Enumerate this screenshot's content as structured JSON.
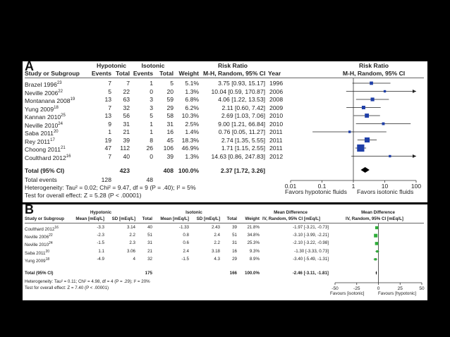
{
  "panel_a": {
    "letter": "A",
    "group_headers": {
      "left": "Hypotonic",
      "right": "Isotonic",
      "effect": "Risk Ratio",
      "plot": "Risk Ratio"
    },
    "columns": {
      "study": "Study or Subgroup",
      "events1": "Events",
      "total1": "Total",
      "events2": "Events",
      "total2": "Total",
      "weight": "Weight",
      "method": "M-H, Random, 95% CI",
      "year": "Year",
      "plot_method": "M-H, Random, 95% CI"
    },
    "rows": [
      {
        "study": "Brazel 1996",
        "ref": "23",
        "e1": "7",
        "t1": "7",
        "e2": "1",
        "t2": "5",
        "w": "5.1%",
        "ci": "3.75 [0.93, 15.17]",
        "year": "1996"
      },
      {
        "study": "Neville 2006",
        "ref": "22",
        "e1": "5",
        "t1": "22",
        "e2": "0",
        "t2": "20",
        "w": "1.3%",
        "ci": "10.04 [0.59, 170.87]",
        "year": "2006"
      },
      {
        "study": "Montanana 2008",
        "ref": "19",
        "e1": "13",
        "t1": "63",
        "e2": "3",
        "t2": "59",
        "w": "6.8%",
        "ci": "4.06 [1.22, 13.53]",
        "year": "2008"
      },
      {
        "study": "Yung 2009",
        "ref": "18",
        "e1": "7",
        "t1": "32",
        "e2": "3",
        "t2": "29",
        "w": "6.2%",
        "ci": "2.11 [0.60, 7.42]",
        "year": "2009"
      },
      {
        "study": "Kannan 2010",
        "ref": "25",
        "e1": "13",
        "t1": "56",
        "e2": "5",
        "t2": "58",
        "w": "10.3%",
        "ci": "2.69 [1.03, 7.06]",
        "year": "2010"
      },
      {
        "study": "Neville 2010",
        "ref": "24",
        "e1": "9",
        "t1": "31",
        "e2": "1",
        "t2": "31",
        "w": "2.5%",
        "ci": "9.00 [1.21, 66.84]",
        "year": "2010"
      },
      {
        "study": "Saba 2011",
        "ref": "20",
        "e1": "1",
        "t1": "21",
        "e2": "1",
        "t2": "16",
        "w": "1.4%",
        "ci": "0.76 [0.05, 11.27]",
        "year": "2011"
      },
      {
        "study": "Rey 2011",
        "ref": "17",
        "e1": "19",
        "t1": "39",
        "e2": "8",
        "t2": "45",
        "w": "18.3%",
        "ci": "2.74 [1.35, 5.55]",
        "year": "2011"
      },
      {
        "study": "Choong 2011",
        "ref": "21",
        "e1": "47",
        "t1": "112",
        "e2": "26",
        "t2": "106",
        "w": "46.9%",
        "ci": "1.71 [1.15, 2.55]",
        "year": "2011"
      },
      {
        "study": "Coulthard 2012",
        "ref": "16",
        "e1": "7",
        "t1": "40",
        "e2": "0",
        "t2": "39",
        "w": "1.3%",
        "ci": "14.63 [0.86, 247.83]",
        "year": "2012"
      }
    ],
    "total": {
      "label": "Total (95% CI)",
      "t1": "423",
      "t2": "408",
      "w": "100.0%",
      "ci": "2.37 [1.72, 3.26]"
    },
    "total_events": {
      "label": "Total events",
      "e1": "128",
      "e2": "48"
    },
    "heterogeneity": "Heterogeneity: Tau² = 0.02; Chi² = 9.47, df = 9 (P = .40); I² = 5%",
    "overall": "Test for overall effect: Z = 5.28 (P < .00001)",
    "axis_ticks": [
      "0.01",
      "0.1",
      "1",
      "10",
      "100"
    ],
    "favors_left": "Favors hypotonic fluids",
    "favors_right": "Favors isotonic fluids"
  },
  "panel_b": {
    "letter": "B",
    "group_headers": {
      "left": "Hypotonic",
      "right": "Isotonic",
      "effect": "Mean Difference",
      "plot": "Mean Difference"
    },
    "columns": {
      "study": "Study or Subgroup",
      "mean1": "Mean [mEq/L]",
      "sd1": "SD [mEq/L]",
      "total1": "Total",
      "mean2": "Mean [mEq/L]",
      "sd2": "SD [mEq/L]",
      "total2": "Total",
      "weight": "Weight",
      "method": "IV, Random, 95% CI [mEq/L]",
      "plot_method": "IV, Random, 95% CI [mEq/L]"
    },
    "rows": [
      {
        "study": "Coulthard 2012",
        "ref": "16",
        "m1": "-3.3",
        "s1": "3.14",
        "n1": "40",
        "m2": "-1.33",
        "s2": "2.43",
        "n2": "39",
        "w": "21.8%",
        "ci": "-1.97 [-3.21, -0.73]"
      },
      {
        "study": "Neville 2006",
        "ref": "22",
        "m1": "-2.3",
        "s1": "2.2",
        "n1": "51",
        "m2": "0.8",
        "s2": "2.4",
        "n2": "51",
        "w": "34.8%",
        "ci": "-3.10 [-3.99, -2.21]"
      },
      {
        "study": "Neville 2010",
        "ref": "24",
        "m1": "-1.5",
        "s1": "2.3",
        "n1": "31",
        "m2": "0.6",
        "s2": "2.2",
        "n2": "31",
        "w": "25.3%",
        "ci": "-2.10 [-3.22, -0.98]"
      },
      {
        "study": "Saba 2011",
        "ref": "20",
        "m1": "1.1",
        "s1": "3.06",
        "n1": "21",
        "m2": "2.4",
        "s2": "3.18",
        "n2": "16",
        "w": "9.3%",
        "ci": "-1.30 [-3.33, 0.73]"
      },
      {
        "study": "Yung 2009",
        "ref": "18",
        "m1": "-4.9",
        "s1": "4",
        "n1": "32",
        "m2": "-1.5",
        "s2": "4.3",
        "n2": "29",
        "w": "8.9%",
        "ci": "-3.40 [-5.49, -1.31]"
      }
    ],
    "total": {
      "label": "Total (95% CI)",
      "n1": "175",
      "n2": "166",
      "w": "100.0%",
      "ci": "-2.46 [-3.11, -1.81]"
    },
    "heterogeneity": "Heterogeneity: Tau² = 0.11; Chi² = 4.98, df = 4 (P = .29); I² = 20%",
    "overall": "Test for overall effect: Z = 7.40 (P < .00001)",
    "axis_ticks": [
      "-50",
      "-25",
      "0",
      "25",
      "50"
    ],
    "favors_left": "Favours [isotonic]",
    "favors_right": "Favours [hypotonic]"
  },
  "chart_data": [
    {
      "type": "forest",
      "scale": "log",
      "xlim": [
        0.01,
        100
      ],
      "title": "Risk Ratio",
      "studies": [
        "Brazel 1996",
        "Neville 2006",
        "Montanana 2008",
        "Yung 2009",
        "Kannan 2010",
        "Neville 2010",
        "Saba 2011",
        "Rey 2011",
        "Choong 2011",
        "Coulthard 2012"
      ],
      "estimate": [
        3.75,
        10.04,
        4.06,
        2.11,
        2.69,
        9.0,
        0.76,
        2.74,
        1.71,
        14.63
      ],
      "lower": [
        0.93,
        0.59,
        1.22,
        0.6,
        1.03,
        1.21,
        0.05,
        1.35,
        1.15,
        0.86
      ],
      "upper": [
        15.17,
        170.87,
        13.53,
        7.42,
        7.06,
        66.84,
        11.27,
        5.55,
        2.55,
        247.83
      ],
      "weight": [
        5.1,
        1.3,
        6.8,
        6.2,
        10.3,
        2.5,
        1.4,
        18.3,
        46.9,
        1.3
      ],
      "pooled": {
        "estimate": 2.37,
        "lower": 1.72,
        "upper": 3.26
      }
    },
    {
      "type": "forest",
      "scale": "linear",
      "xlim": [
        -50,
        50
      ],
      "title": "Mean Difference",
      "studies": [
        "Coulthard 2012",
        "Neville 2006",
        "Neville 2010",
        "Saba 2011",
        "Yung 2009"
      ],
      "estimate": [
        -1.97,
        -3.1,
        -2.1,
        -1.3,
        -3.4
      ],
      "lower": [
        -3.21,
        -3.99,
        -3.22,
        -3.33,
        -5.49
      ],
      "upper": [
        -0.73,
        -2.21,
        -0.98,
        0.73,
        -1.31
      ],
      "weight": [
        21.8,
        34.8,
        25.3,
        9.3,
        8.9
      ],
      "pooled": {
        "estimate": -2.46,
        "lower": -3.11,
        "upper": -1.81
      }
    }
  ]
}
